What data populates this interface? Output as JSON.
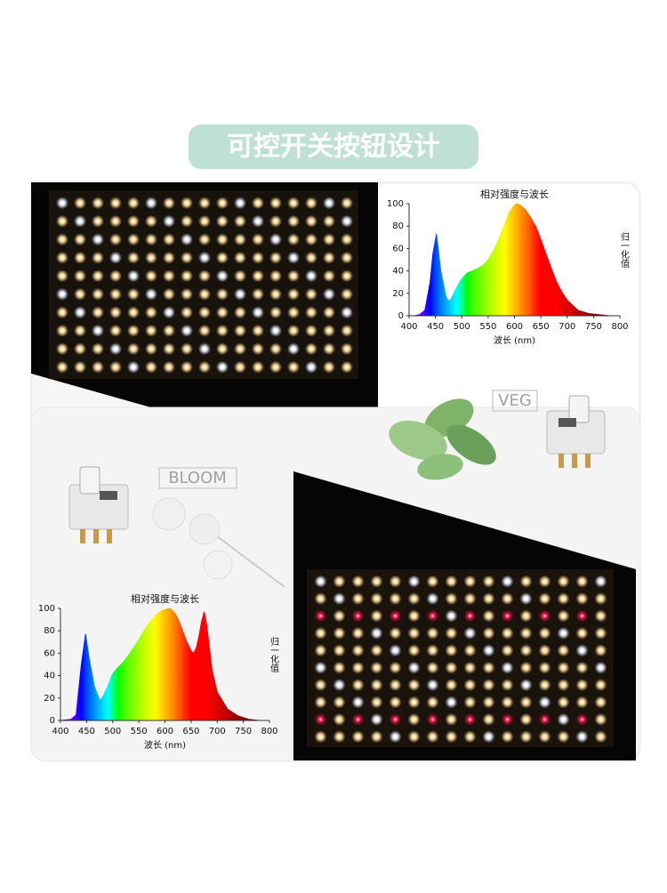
{
  "header": {
    "title": "可控开关按钮设计"
  },
  "labels": {
    "veg": "VEG",
    "bloom": "BLOOM"
  },
  "chart_data": [
    {
      "type": "area",
      "title": "相对强度与波长",
      "x_label": "波长 (nm)",
      "y_label": "归一化值",
      "x": [
        400,
        410,
        420,
        430,
        440,
        445,
        452,
        460,
        470,
        475,
        480,
        490,
        500,
        510,
        520,
        530,
        540,
        550,
        560,
        570,
        580,
        590,
        600,
        605,
        610,
        620,
        630,
        640,
        650,
        660,
        670,
        680,
        690,
        700,
        720,
        740,
        760,
        780,
        800
      ],
      "values": [
        0,
        0,
        1,
        5,
        30,
        55,
        73,
        40,
        17,
        13,
        15,
        25,
        33,
        38,
        40,
        42,
        45,
        50,
        58,
        68,
        80,
        92,
        99,
        100,
        99,
        95,
        88,
        80,
        68,
        55,
        42,
        30,
        21,
        14,
        5,
        2,
        1,
        0,
        0
      ],
      "xlim": [
        400,
        800
      ],
      "ylim": [
        0,
        100
      ],
      "xticks": [
        400,
        450,
        500,
        550,
        600,
        650,
        700,
        750,
        800
      ],
      "yticks": [
        0,
        20,
        40,
        60,
        80,
        100
      ]
    },
    {
      "type": "area",
      "title": "相对强度与波长",
      "x_label": "波长 (nm)",
      "y_label": "归一化值",
      "x": [
        400,
        420,
        430,
        440,
        448,
        455,
        465,
        475,
        480,
        490,
        500,
        510,
        520,
        530,
        540,
        550,
        560,
        570,
        580,
        590,
        600,
        610,
        620,
        630,
        640,
        650,
        655,
        660,
        665,
        670,
        675,
        680,
        690,
        700,
        720,
        740,
        760,
        780,
        800
      ],
      "values": [
        0,
        1,
        5,
        50,
        77,
        55,
        30,
        18,
        20,
        30,
        42,
        47,
        52,
        58,
        65,
        72,
        80,
        87,
        93,
        97,
        99,
        100,
        95,
        85,
        72,
        62,
        60,
        65,
        75,
        88,
        97,
        85,
        45,
        25,
        10,
        4,
        1,
        0,
        0
      ],
      "xlim": [
        400,
        800
      ],
      "ylim": [
        0,
        100
      ],
      "xticks": [
        400,
        450,
        500,
        550,
        600,
        650,
        700,
        750,
        800
      ],
      "yticks": [
        0,
        20,
        40,
        60,
        80,
        100
      ]
    }
  ]
}
